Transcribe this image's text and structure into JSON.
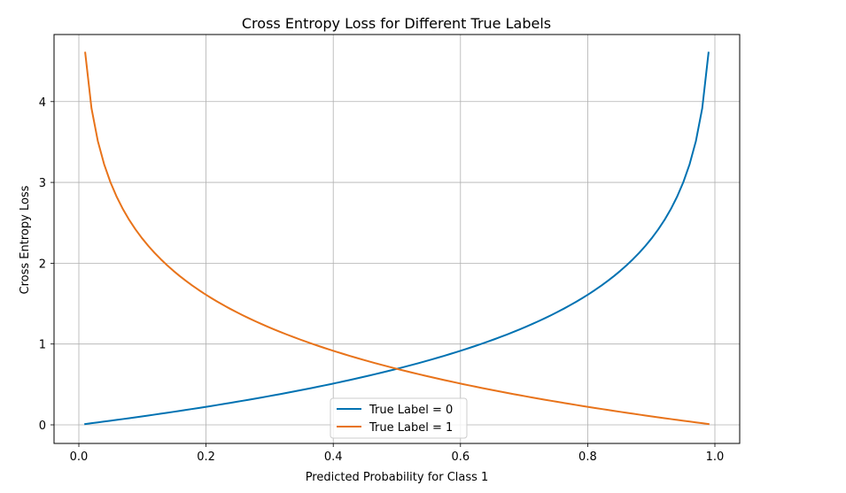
{
  "chart_data": {
    "type": "line",
    "title": "Cross Entropy Loss for Different True Labels",
    "xlabel": "Predicted Probability for Class 1",
    "ylabel": "Cross Entropy Loss",
    "xlim": [
      -0.039,
      1.039
    ],
    "ylim": [
      -0.23,
      4.83
    ],
    "xticks": [
      0.0,
      0.2,
      0.4,
      0.6,
      0.8,
      1.0
    ],
    "xtick_labels": [
      "0.0",
      "0.2",
      "0.4",
      "0.6",
      "0.8",
      "1.0"
    ],
    "yticks": [
      0,
      1,
      2,
      3,
      4
    ],
    "ytick_labels": [
      "0",
      "1",
      "2",
      "3",
      "4"
    ],
    "grid": true,
    "legend_position": "lower-center",
    "x_range": [
      0.01,
      0.99
    ],
    "num_points": 100,
    "series": [
      {
        "name": "True Label = 0",
        "label": "True Label = 0",
        "formula": "-ln(1 - p)",
        "color": "#0072b2"
      },
      {
        "name": "True Label = 1",
        "label": "True Label = 1",
        "formula": "-ln(p)",
        "color": "#e8731a"
      }
    ]
  }
}
